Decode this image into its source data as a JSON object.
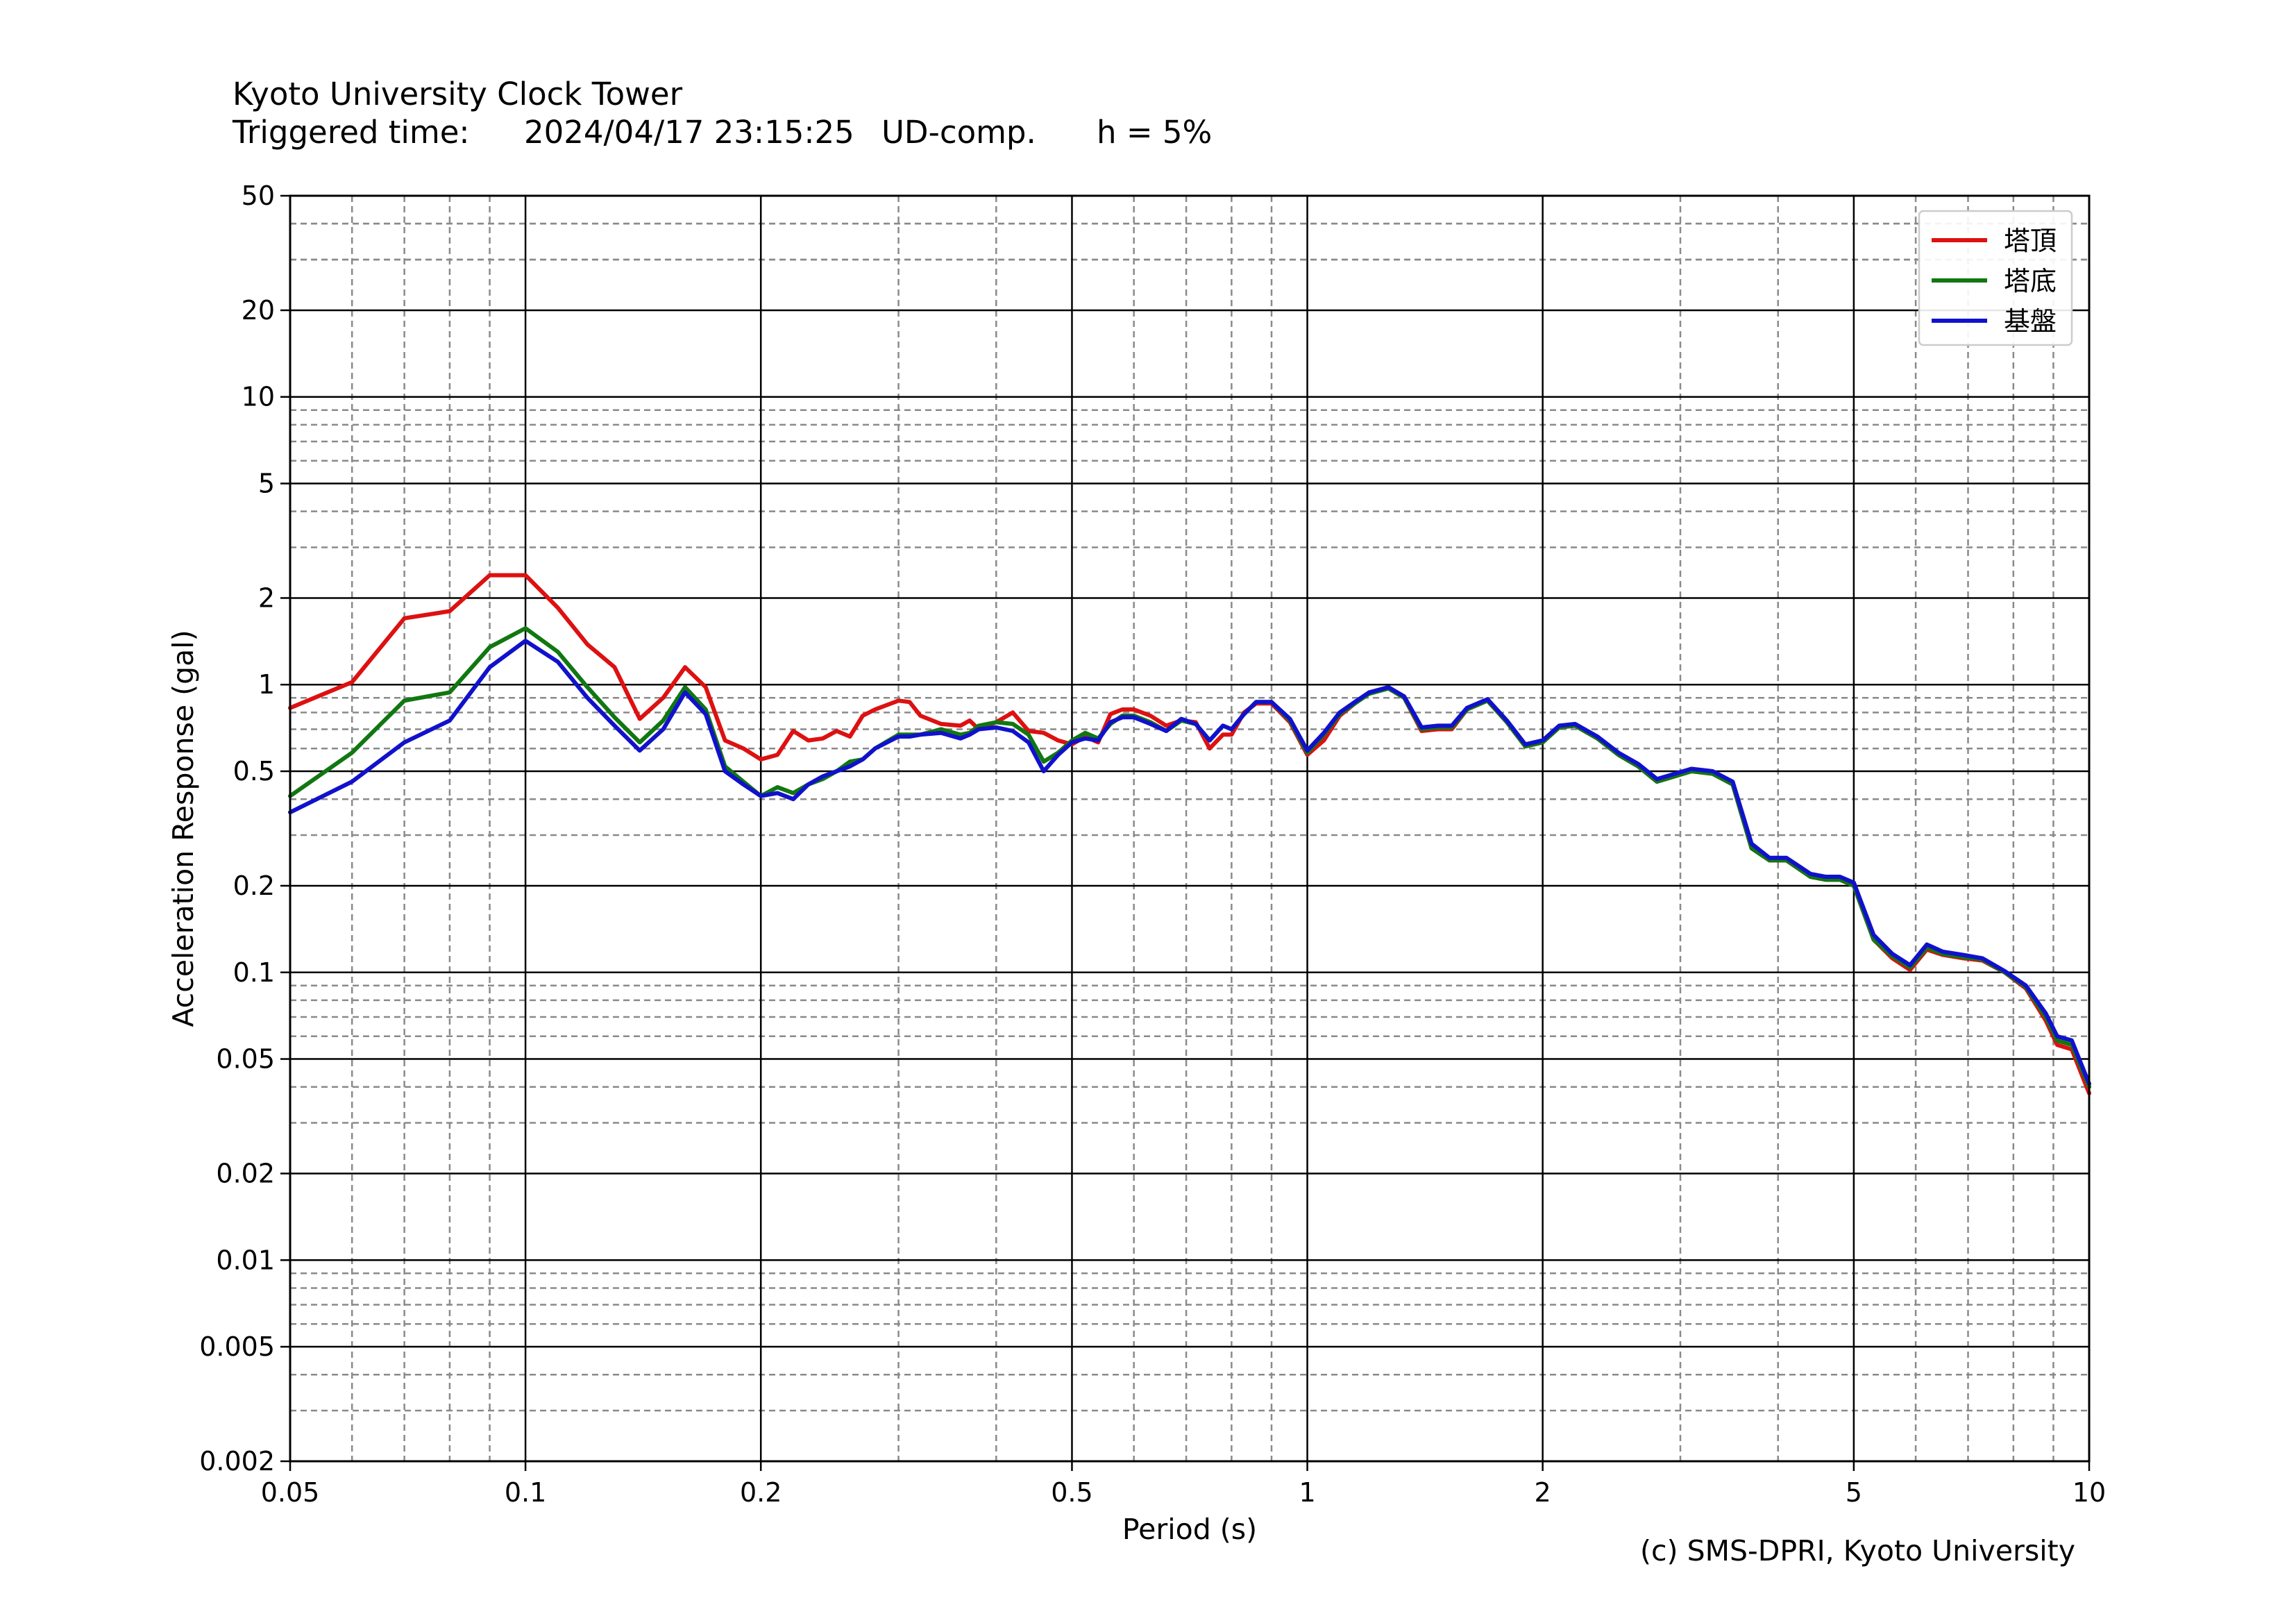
{
  "header": {
    "title": "Kyoto University Clock Tower",
    "trigger_label": "Triggered time:",
    "trigger_time": "2024/04/17 23:15:25",
    "component": "UD-comp.",
    "damping": "h = 5%"
  },
  "footer": {
    "copyright": "(c) SMS-DPRI, Kyoto University"
  },
  "chart_data": {
    "type": "line",
    "xlabel": "Period (s)",
    "ylabel": "Acceleration Response (gal)",
    "xscale": "log",
    "yscale": "log",
    "xlim": [
      0.05,
      10
    ],
    "ylim": [
      0.002,
      50
    ],
    "grid": true,
    "legend_position": "top-right",
    "x_ticks": [
      0.05,
      0.1,
      0.2,
      0.5,
      1,
      2,
      5,
      10
    ],
    "x_tick_labels": [
      "0.05",
      "0.1",
      "0.2",
      "0.5",
      "1",
      "2",
      "5",
      "10"
    ],
    "y_ticks": [
      0.002,
      0.005,
      0.01,
      0.02,
      0.05,
      0.1,
      0.2,
      0.5,
      1,
      2,
      5,
      10,
      20,
      50
    ],
    "y_tick_labels": [
      "0.002",
      "0.005",
      "0.01",
      "0.02",
      "0.05",
      "0.1",
      "0.2",
      "0.5",
      "1",
      "2",
      "5",
      "10",
      "20",
      "50"
    ],
    "series": [
      {
        "name": "塔頂",
        "color": "#dd1111",
        "points": [
          [
            0.05,
            0.83
          ],
          [
            0.06,
            1.02
          ],
          [
            0.07,
            1.7
          ],
          [
            0.08,
            1.8
          ],
          [
            0.09,
            2.4
          ],
          [
            0.1,
            2.4
          ],
          [
            0.11,
            1.85
          ],
          [
            0.12,
            1.38
          ],
          [
            0.13,
            1.15
          ],
          [
            0.14,
            0.76
          ],
          [
            0.15,
            0.9
          ],
          [
            0.16,
            1.15
          ],
          [
            0.17,
            0.98
          ],
          [
            0.18,
            0.64
          ],
          [
            0.19,
            0.6
          ],
          [
            0.2,
            0.55
          ],
          [
            0.21,
            0.57
          ],
          [
            0.22,
            0.69
          ],
          [
            0.23,
            0.64
          ],
          [
            0.24,
            0.65
          ],
          [
            0.25,
            0.69
          ],
          [
            0.26,
            0.66
          ],
          [
            0.27,
            0.78
          ],
          [
            0.28,
            0.82
          ],
          [
            0.3,
            0.88
          ],
          [
            0.31,
            0.87
          ],
          [
            0.32,
            0.78
          ],
          [
            0.34,
            0.73
          ],
          [
            0.36,
            0.72
          ],
          [
            0.37,
            0.75
          ],
          [
            0.38,
            0.7
          ],
          [
            0.4,
            0.74
          ],
          [
            0.42,
            0.8
          ],
          [
            0.44,
            0.69
          ],
          [
            0.46,
            0.68
          ],
          [
            0.48,
            0.64
          ],
          [
            0.5,
            0.62
          ],
          [
            0.52,
            0.66
          ],
          [
            0.54,
            0.63
          ],
          [
            0.56,
            0.79
          ],
          [
            0.58,
            0.82
          ],
          [
            0.6,
            0.82
          ],
          [
            0.63,
            0.78
          ],
          [
            0.66,
            0.72
          ],
          [
            0.69,
            0.75
          ],
          [
            0.72,
            0.74
          ],
          [
            0.75,
            0.6
          ],
          [
            0.78,
            0.67
          ],
          [
            0.8,
            0.67
          ],
          [
            0.83,
            0.8
          ],
          [
            0.86,
            0.86
          ],
          [
            0.9,
            0.86
          ],
          [
            0.95,
            0.74
          ],
          [
            1.0,
            0.57
          ],
          [
            1.05,
            0.64
          ],
          [
            1.1,
            0.78
          ],
          [
            1.15,
            0.86
          ],
          [
            1.2,
            0.94
          ],
          [
            1.27,
            0.97
          ],
          [
            1.33,
            0.9
          ],
          [
            1.4,
            0.69
          ],
          [
            1.47,
            0.7
          ],
          [
            1.53,
            0.7
          ],
          [
            1.6,
            0.82
          ],
          [
            1.7,
            0.88
          ],
          [
            1.8,
            0.74
          ],
          [
            1.9,
            0.61
          ],
          [
            2.0,
            0.63
          ],
          [
            2.1,
            0.71
          ],
          [
            2.2,
            0.72
          ],
          [
            2.35,
            0.65
          ],
          [
            2.5,
            0.57
          ],
          [
            2.65,
            0.52
          ],
          [
            2.8,
            0.46
          ],
          [
            2.95,
            0.48
          ],
          [
            3.1,
            0.5
          ],
          [
            3.3,
            0.49
          ],
          [
            3.5,
            0.45
          ],
          [
            3.7,
            0.27
          ],
          [
            3.9,
            0.245
          ],
          [
            4.1,
            0.245
          ],
          [
            4.4,
            0.215
          ],
          [
            4.6,
            0.21
          ],
          [
            4.8,
            0.21
          ],
          [
            5.0,
            0.2
          ],
          [
            5.3,
            0.13
          ],
          [
            5.6,
            0.112
          ],
          [
            5.9,
            0.102
          ],
          [
            6.2,
            0.12
          ],
          [
            6.5,
            0.115
          ],
          [
            6.9,
            0.112
          ],
          [
            7.3,
            0.11
          ],
          [
            7.8,
            0.1
          ],
          [
            8.3,
            0.088
          ],
          [
            8.8,
            0.068
          ],
          [
            9.1,
            0.056
          ],
          [
            9.5,
            0.054
          ],
          [
            10.0,
            0.038
          ]
        ]
      },
      {
        "name": "塔底",
        "color": "#117711",
        "points": [
          [
            0.05,
            0.41
          ],
          [
            0.06,
            0.58
          ],
          [
            0.07,
            0.88
          ],
          [
            0.08,
            0.94
          ],
          [
            0.09,
            1.35
          ],
          [
            0.1,
            1.57
          ],
          [
            0.11,
            1.3
          ],
          [
            0.12,
            0.98
          ],
          [
            0.13,
            0.77
          ],
          [
            0.14,
            0.63
          ],
          [
            0.15,
            0.75
          ],
          [
            0.16,
            0.98
          ],
          [
            0.17,
            0.82
          ],
          [
            0.18,
            0.52
          ],
          [
            0.19,
            0.46
          ],
          [
            0.2,
            0.41
          ],
          [
            0.21,
            0.44
          ],
          [
            0.22,
            0.42
          ],
          [
            0.23,
            0.45
          ],
          [
            0.24,
            0.47
          ],
          [
            0.25,
            0.5
          ],
          [
            0.26,
            0.54
          ],
          [
            0.27,
            0.55
          ],
          [
            0.28,
            0.6
          ],
          [
            0.3,
            0.67
          ],
          [
            0.31,
            0.67
          ],
          [
            0.32,
            0.67
          ],
          [
            0.34,
            0.7
          ],
          [
            0.36,
            0.67
          ],
          [
            0.37,
            0.68
          ],
          [
            0.38,
            0.72
          ],
          [
            0.4,
            0.74
          ],
          [
            0.42,
            0.73
          ],
          [
            0.44,
            0.67
          ],
          [
            0.46,
            0.54
          ],
          [
            0.48,
            0.58
          ],
          [
            0.5,
            0.64
          ],
          [
            0.52,
            0.68
          ],
          [
            0.54,
            0.65
          ],
          [
            0.56,
            0.73
          ],
          [
            0.58,
            0.78
          ],
          [
            0.6,
            0.78
          ],
          [
            0.63,
            0.74
          ],
          [
            0.66,
            0.69
          ],
          [
            0.69,
            0.75
          ],
          [
            0.72,
            0.73
          ],
          [
            0.75,
            0.64
          ],
          [
            0.78,
            0.72
          ],
          [
            0.8,
            0.7
          ],
          [
            0.83,
            0.79
          ],
          [
            0.86,
            0.87
          ],
          [
            0.9,
            0.87
          ],
          [
            0.95,
            0.75
          ],
          [
            1.0,
            0.58
          ],
          [
            1.05,
            0.67
          ],
          [
            1.1,
            0.79
          ],
          [
            1.15,
            0.86
          ],
          [
            1.2,
            0.93
          ],
          [
            1.27,
            0.97
          ],
          [
            1.33,
            0.9
          ],
          [
            1.4,
            0.7
          ],
          [
            1.47,
            0.71
          ],
          [
            1.53,
            0.71
          ],
          [
            1.6,
            0.82
          ],
          [
            1.7,
            0.88
          ],
          [
            1.8,
            0.74
          ],
          [
            1.9,
            0.61
          ],
          [
            2.0,
            0.63
          ],
          [
            2.1,
            0.71
          ],
          [
            2.2,
            0.72
          ],
          [
            2.35,
            0.65
          ],
          [
            2.5,
            0.57
          ],
          [
            2.65,
            0.52
          ],
          [
            2.8,
            0.46
          ],
          [
            2.95,
            0.48
          ],
          [
            3.1,
            0.5
          ],
          [
            3.3,
            0.49
          ],
          [
            3.5,
            0.45
          ],
          [
            3.7,
            0.27
          ],
          [
            3.9,
            0.245
          ],
          [
            4.1,
            0.245
          ],
          [
            4.4,
            0.215
          ],
          [
            4.6,
            0.21
          ],
          [
            4.8,
            0.21
          ],
          [
            5.0,
            0.2
          ],
          [
            5.3,
            0.13
          ],
          [
            5.6,
            0.114
          ],
          [
            5.9,
            0.104
          ],
          [
            6.2,
            0.122
          ],
          [
            6.5,
            0.116
          ],
          [
            6.9,
            0.113
          ],
          [
            7.3,
            0.111
          ],
          [
            7.8,
            0.1
          ],
          [
            8.3,
            0.089
          ],
          [
            8.8,
            0.07
          ],
          [
            9.1,
            0.058
          ],
          [
            9.5,
            0.056
          ],
          [
            10.0,
            0.04
          ]
        ]
      },
      {
        "name": "基盤",
        "color": "#1111cc",
        "points": [
          [
            0.05,
            0.36
          ],
          [
            0.06,
            0.46
          ],
          [
            0.07,
            0.63
          ],
          [
            0.08,
            0.75
          ],
          [
            0.09,
            1.15
          ],
          [
            0.1,
            1.42
          ],
          [
            0.11,
            1.2
          ],
          [
            0.12,
            0.9
          ],
          [
            0.13,
            0.72
          ],
          [
            0.14,
            0.59
          ],
          [
            0.15,
            0.7
          ],
          [
            0.16,
            0.94
          ],
          [
            0.17,
            0.79
          ],
          [
            0.18,
            0.5
          ],
          [
            0.19,
            0.45
          ],
          [
            0.2,
            0.41
          ],
          [
            0.21,
            0.42
          ],
          [
            0.22,
            0.4
          ],
          [
            0.23,
            0.45
          ],
          [
            0.24,
            0.48
          ],
          [
            0.25,
            0.5
          ],
          [
            0.26,
            0.52
          ],
          [
            0.27,
            0.55
          ],
          [
            0.28,
            0.6
          ],
          [
            0.3,
            0.66
          ],
          [
            0.31,
            0.66
          ],
          [
            0.32,
            0.67
          ],
          [
            0.34,
            0.68
          ],
          [
            0.36,
            0.65
          ],
          [
            0.37,
            0.67
          ],
          [
            0.38,
            0.7
          ],
          [
            0.4,
            0.71
          ],
          [
            0.42,
            0.69
          ],
          [
            0.44,
            0.63
          ],
          [
            0.46,
            0.5
          ],
          [
            0.48,
            0.57
          ],
          [
            0.5,
            0.63
          ],
          [
            0.52,
            0.65
          ],
          [
            0.54,
            0.64
          ],
          [
            0.56,
            0.74
          ],
          [
            0.58,
            0.77
          ],
          [
            0.6,
            0.77
          ],
          [
            0.63,
            0.73
          ],
          [
            0.66,
            0.69
          ],
          [
            0.69,
            0.76
          ],
          [
            0.72,
            0.73
          ],
          [
            0.75,
            0.64
          ],
          [
            0.78,
            0.72
          ],
          [
            0.8,
            0.7
          ],
          [
            0.83,
            0.79
          ],
          [
            0.86,
            0.87
          ],
          [
            0.9,
            0.87
          ],
          [
            0.95,
            0.76
          ],
          [
            1.0,
            0.59
          ],
          [
            1.05,
            0.68
          ],
          [
            1.1,
            0.8
          ],
          [
            1.15,
            0.87
          ],
          [
            1.2,
            0.94
          ],
          [
            1.27,
            0.98
          ],
          [
            1.33,
            0.91
          ],
          [
            1.4,
            0.71
          ],
          [
            1.47,
            0.72
          ],
          [
            1.53,
            0.72
          ],
          [
            1.6,
            0.83
          ],
          [
            1.7,
            0.89
          ],
          [
            1.8,
            0.75
          ],
          [
            1.9,
            0.62
          ],
          [
            2.0,
            0.64
          ],
          [
            2.1,
            0.72
          ],
          [
            2.2,
            0.73
          ],
          [
            2.35,
            0.66
          ],
          [
            2.5,
            0.58
          ],
          [
            2.65,
            0.53
          ],
          [
            2.8,
            0.47
          ],
          [
            2.95,
            0.49
          ],
          [
            3.1,
            0.51
          ],
          [
            3.3,
            0.5
          ],
          [
            3.5,
            0.46
          ],
          [
            3.7,
            0.28
          ],
          [
            3.9,
            0.25
          ],
          [
            4.1,
            0.25
          ],
          [
            4.4,
            0.22
          ],
          [
            4.6,
            0.215
          ],
          [
            4.8,
            0.215
          ],
          [
            5.0,
            0.205
          ],
          [
            5.3,
            0.135
          ],
          [
            5.6,
            0.116
          ],
          [
            5.9,
            0.106
          ],
          [
            6.2,
            0.125
          ],
          [
            6.5,
            0.118
          ],
          [
            6.9,
            0.115
          ],
          [
            7.3,
            0.112
          ],
          [
            7.8,
            0.101
          ],
          [
            8.3,
            0.09
          ],
          [
            8.8,
            0.072
          ],
          [
            9.1,
            0.06
          ],
          [
            9.5,
            0.058
          ],
          [
            10.0,
            0.041
          ]
        ]
      }
    ]
  }
}
